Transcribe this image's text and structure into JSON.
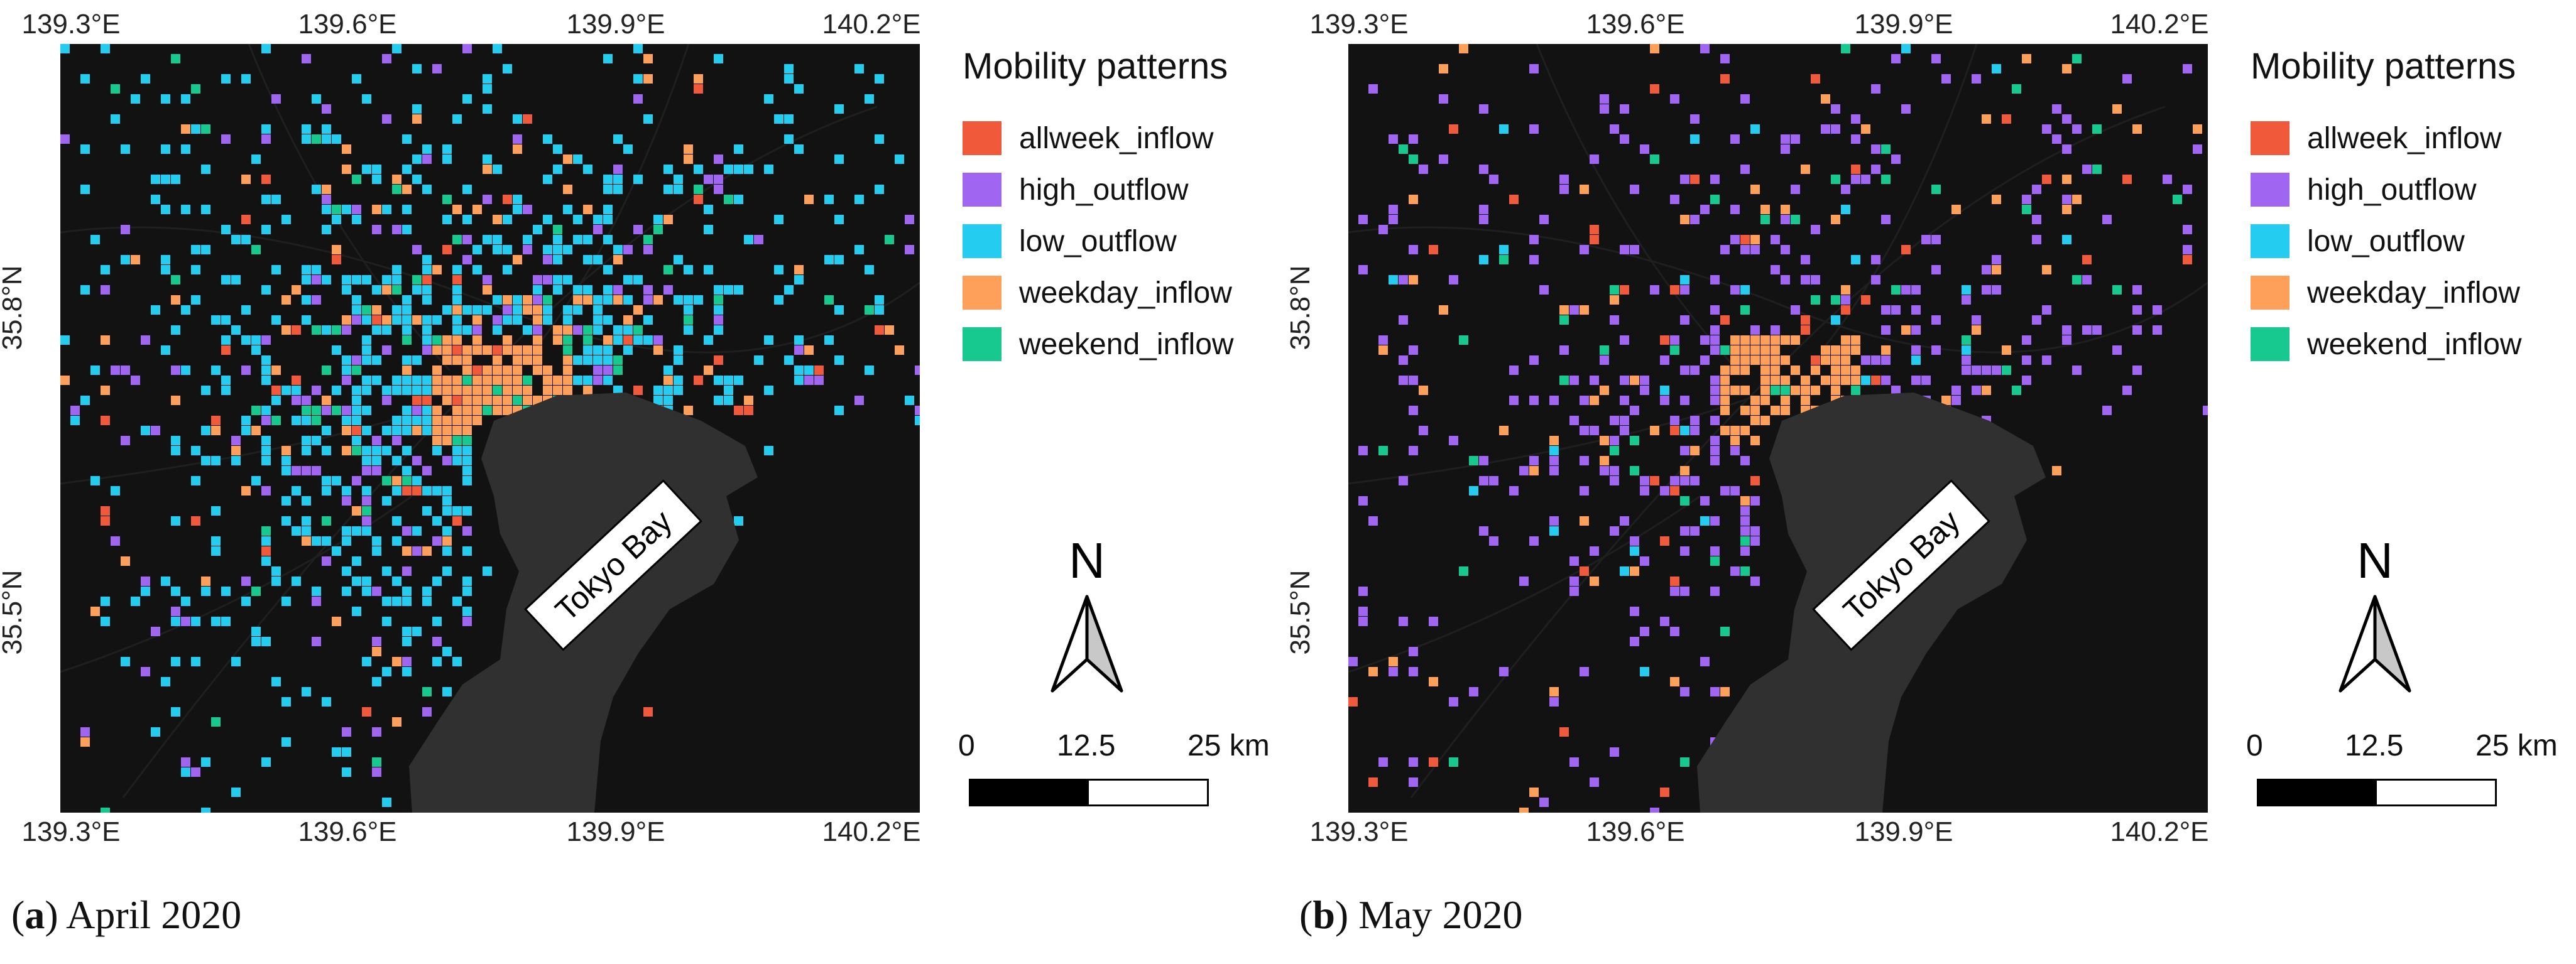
{
  "panels": [
    {
      "label": "a",
      "caption": "April 2020",
      "bay_label": "Tokyo Bay",
      "lon_ticks": [
        "139.3°E",
        "139.6°E",
        "139.9°E",
        "140.2°E"
      ],
      "lat_ticks": [
        "35.8°N",
        "35.5°N"
      ],
      "dominant": "low_outflow",
      "density": 1.0
    },
    {
      "label": "b",
      "caption": "May 2020",
      "bay_label": "Tokyo Bay",
      "lon_ticks": [
        "139.3°E",
        "139.6°E",
        "139.9°E",
        "140.2°E"
      ],
      "lat_ticks": [
        "35.8°N",
        "35.5°N"
      ],
      "dominant": "high_outflow",
      "density": 0.62
    }
  ],
  "legend": {
    "title": "Mobility patterns",
    "items": [
      {
        "key": "allweek_inflow",
        "label": "allweek_inflow",
        "color": "#f05a3a"
      },
      {
        "key": "high_outflow",
        "label": "high_outflow",
        "color": "#a066f2"
      },
      {
        "key": "low_outflow",
        "label": "low_outflow",
        "color": "#24cdf0"
      },
      {
        "key": "weekday_inflow",
        "label": "weekday_inflow",
        "color": "#ffa05a"
      },
      {
        "key": "weekend_inflow",
        "label": "weekend_inflow",
        "color": "#17c98f"
      }
    ]
  },
  "north_arrow": {
    "label": "N"
  },
  "scale_bar": {
    "labels": [
      "0",
      "12.5",
      "25 km"
    ]
  }
}
